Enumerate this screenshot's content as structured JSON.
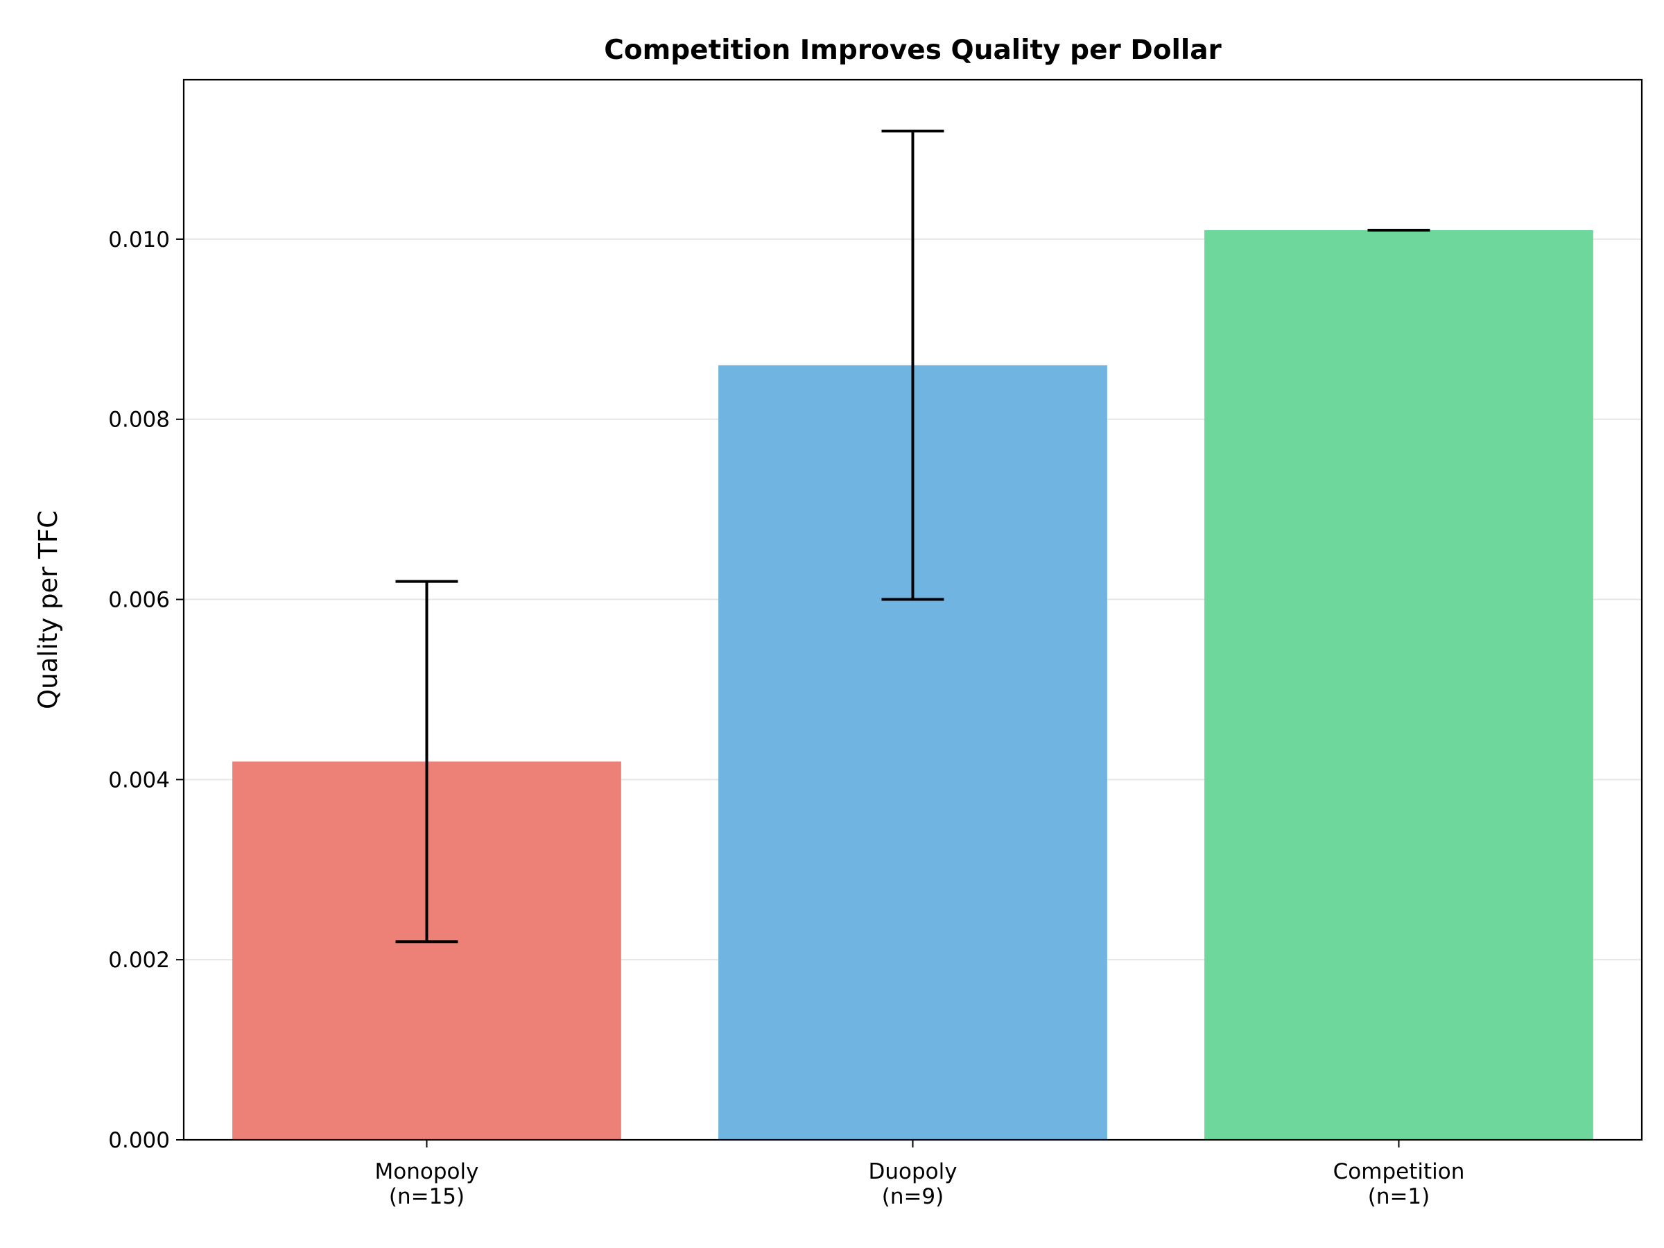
{
  "chart_data": {
    "type": "bar",
    "title": "Competition Improves Quality per Dollar",
    "xlabel": "",
    "ylabel": "Quality per TFC",
    "categories": [
      [
        "Monopoly",
        "(n=15)"
      ],
      [
        "Duopoly",
        "(n=9)"
      ],
      [
        "Competition",
        "(n=1)"
      ]
    ],
    "values": [
      0.0042,
      0.0086,
      0.0101
    ],
    "errors": [
      0.002,
      0.0026,
      0.0
    ],
    "colors": [
      "#EE8177",
      "#70B5E2",
      "#6ED89C"
    ],
    "ylim": [
      0,
      0.01177
    ],
    "yticks": [
      0.0,
      0.002,
      0.004,
      0.006,
      0.008,
      0.01
    ],
    "ytick_labels": [
      "0.000",
      "0.002",
      "0.004",
      "0.006",
      "0.008",
      "0.010"
    ],
    "grid": "y",
    "legend": "none"
  }
}
